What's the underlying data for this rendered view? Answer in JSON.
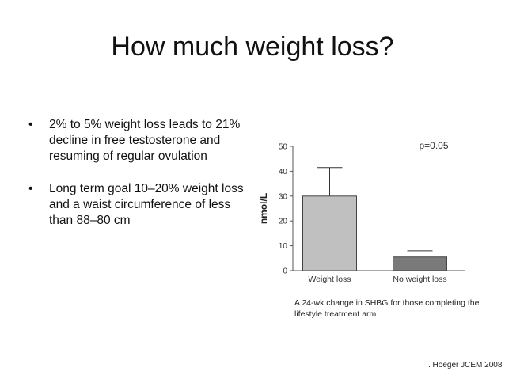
{
  "slide": {
    "title": "How much weight loss?",
    "bullets": [
      "2% to 5% weight loss leads to 21% decline in free testosterone and resuming of regular ovulation",
      "Long term goal 10–20% weight loss and a waist circumference of less than 88–80 cm"
    ],
    "caption": "A 24-wk change in SHBG for those completing the lifestyle treatment arm",
    "citation": ". Hoeger JCEM 2008"
  },
  "chart_data": {
    "type": "bar",
    "categories": [
      "Weight loss",
      "No weight loss"
    ],
    "values": [
      30,
      5.5
    ],
    "error_upper": [
      41.5,
      8
    ],
    "ylabel": "nmol/L",
    "ylim": [
      0,
      50
    ],
    "yticks": [
      "0",
      "10",
      "20",
      "30",
      "40",
      "50"
    ],
    "annotation": "p=0.05",
    "colors": [
      "#c0c0c0",
      "#7a7a7a"
    ],
    "grid": false
  }
}
